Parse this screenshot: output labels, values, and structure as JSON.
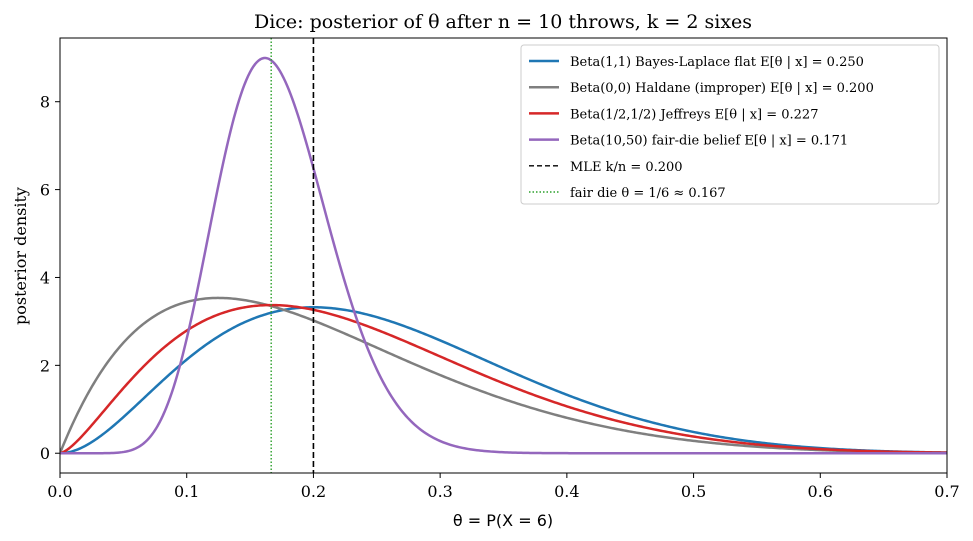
{
  "chart_data": {
    "type": "line",
    "title": "Dice: posterior of θ after n = 10 throws, k = 2 sixes",
    "xlabel": "θ = P(X = 6)",
    "ylabel": "posterior density",
    "xlim": [
      0,
      0.7
    ],
    "ylim": [
      -0.45,
      9.45
    ],
    "xticks": [
      "0.0",
      "0.1",
      "0.2",
      "0.3",
      "0.4",
      "0.5",
      "0.6",
      "0.7"
    ],
    "yticks": [
      "0",
      "2",
      "4",
      "6",
      "8"
    ],
    "grid": false,
    "legend_position": "top-right",
    "observed": {
      "n": 10,
      "k": 2
    },
    "series": [
      {
        "name": "Beta(1,1)  Bayes-Laplace flat   E[θ | x] = 0.250",
        "prior": [
          1,
          1
        ],
        "color": "#1f77b4"
      },
      {
        "name": "Beta(0,0)  Haldane (improper)   E[θ | x] = 0.200",
        "prior": [
          0,
          0
        ],
        "color": "#7f7f7f"
      },
      {
        "name": "Beta(1/2,1/2)  Jeffreys   E[θ | x] = 0.227",
        "prior": [
          0.5,
          0.5
        ],
        "color": "#d62728"
      },
      {
        "name": "Beta(10,50)  fair-die belief   E[θ | x] = 0.171",
        "prior": [
          10,
          50
        ],
        "color": "#9467bd"
      }
    ],
    "vlines": [
      {
        "name": "MLE k/n = 0.200",
        "x": 0.2,
        "color": "#000000",
        "style": "dashed"
      },
      {
        "name": "fair die θ = 1/6 ≈ 0.167",
        "x": 0.16667,
        "color": "#2ca02c",
        "style": "dotted"
      }
    ]
  }
}
